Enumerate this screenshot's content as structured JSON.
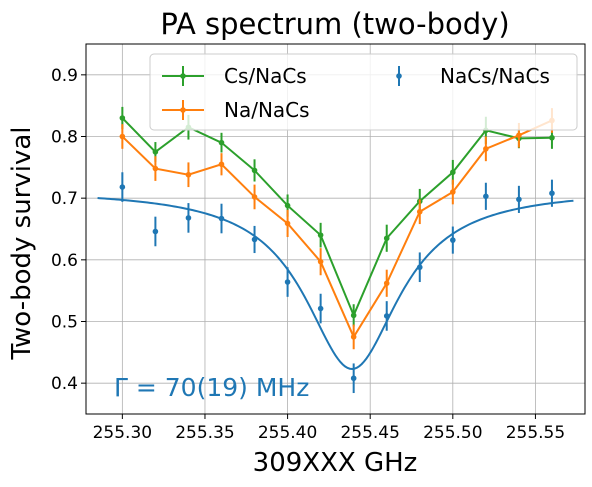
{
  "chart_data": {
    "type": "line",
    "title": "PA spectrum (two-body)",
    "xlabel": "309XXX GHz",
    "ylabel": "Two-body survival",
    "xlim": [
      255.278,
      255.58
    ],
    "ylim": [
      0.35,
      0.95
    ],
    "xticks": [
      255.3,
      255.35,
      255.4,
      255.45,
      255.5,
      255.55
    ],
    "xtick_labels": [
      "255.30",
      "255.35",
      "255.40",
      "255.45",
      "255.50",
      "255.55"
    ],
    "yticks": [
      0.4,
      0.5,
      0.6,
      0.7,
      0.8,
      0.9
    ],
    "ytick_labels": [
      "0.4",
      "0.5",
      "0.6",
      "0.7",
      "0.8",
      "0.9"
    ],
    "grid": true,
    "legend_position": "top",
    "annotation": {
      "text": "Γ = 70(19) MHz",
      "color": "#1f77b4"
    },
    "series": [
      {
        "name": "Cs/NaCs",
        "color": "#2ca02c",
        "style": "errorbar-line",
        "x": [
          255.3,
          255.32,
          255.34,
          255.36,
          255.38,
          255.4,
          255.42,
          255.44,
          255.46,
          255.48,
          255.5,
          255.52,
          255.54,
          255.56
        ],
        "y": [
          0.83,
          0.775,
          0.815,
          0.79,
          0.745,
          0.688,
          0.64,
          0.51,
          0.635,
          0.695,
          0.742,
          0.81,
          0.797,
          0.798
        ],
        "err": [
          0.018,
          0.016,
          0.02,
          0.016,
          0.018,
          0.018,
          0.02,
          0.018,
          0.022,
          0.02,
          0.02,
          0.022,
          0.016,
          0.018
        ]
      },
      {
        "name": "Na/NaCs",
        "color": "#ff7f0e",
        "style": "errorbar-line",
        "x": [
          255.3,
          255.32,
          255.34,
          255.36,
          255.38,
          255.4,
          255.42,
          255.44,
          255.46,
          255.48,
          255.5,
          255.52,
          255.54,
          255.56
        ],
        "y": [
          0.8,
          0.748,
          0.738,
          0.755,
          0.702,
          0.659,
          0.597,
          0.475,
          0.562,
          0.678,
          0.71,
          0.78,
          0.802,
          0.826
        ],
        "err": [
          0.02,
          0.02,
          0.02,
          0.018,
          0.02,
          0.022,
          0.022,
          0.02,
          0.022,
          0.02,
          0.02,
          0.02,
          0.02,
          0.02
        ]
      },
      {
        "name": "NaCs/NaCs",
        "color": "#1f77b4",
        "style": "errorbar-points",
        "x": [
          255.3,
          255.32,
          255.34,
          255.36,
          255.38,
          255.4,
          255.42,
          255.44,
          255.46,
          255.48,
          255.5,
          255.52,
          255.54,
          255.56
        ],
        "y": [
          0.718,
          0.646,
          0.668,
          0.667,
          0.633,
          0.564,
          0.521,
          0.408,
          0.509,
          0.588,
          0.632,
          0.703,
          0.698,
          0.708
        ],
        "err": [
          0.024,
          0.024,
          0.024,
          0.024,
          0.022,
          0.024,
          0.024,
          0.024,
          0.024,
          0.024,
          0.022,
          0.022,
          0.022,
          0.022
        ]
      },
      {
        "color": "#1f77b4",
        "style": "fit-line",
        "fit": {
          "model": "lorentzian",
          "center": 255.439,
          "baseline": 0.7145,
          "depth": 0.2915,
          "fwhm": 0.07,
          "x_range": [
            255.285,
            255.573
          ]
        }
      }
    ]
  }
}
